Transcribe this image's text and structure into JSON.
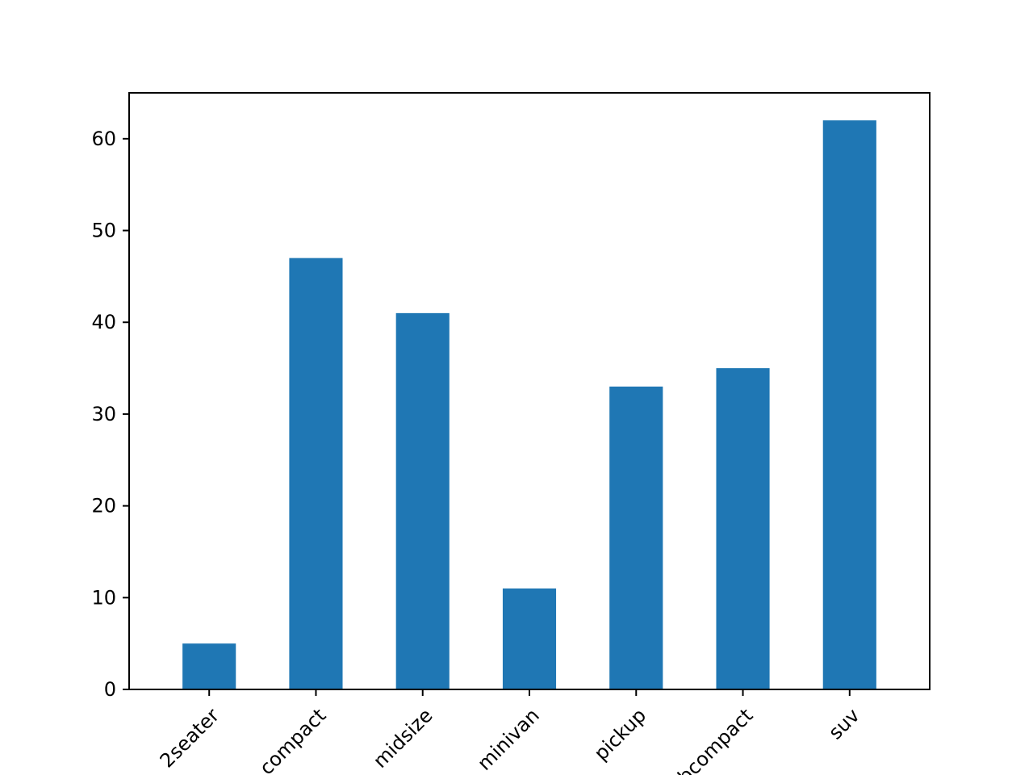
{
  "chart_data": {
    "type": "bar",
    "title": "",
    "xlabel": "",
    "ylabel": "",
    "categories": [
      "2seater",
      "compact",
      "midsize",
      "minivan",
      "pickup",
      "subcompact",
      "suv"
    ],
    "values": [
      5,
      47,
      41,
      11,
      33,
      35,
      62
    ],
    "ylim": [
      0,
      65
    ],
    "yticks": [
      0,
      10,
      20,
      30,
      40,
      50,
      60
    ],
    "bar_color": "#1f77b4",
    "grid": false,
    "legend": "none"
  }
}
